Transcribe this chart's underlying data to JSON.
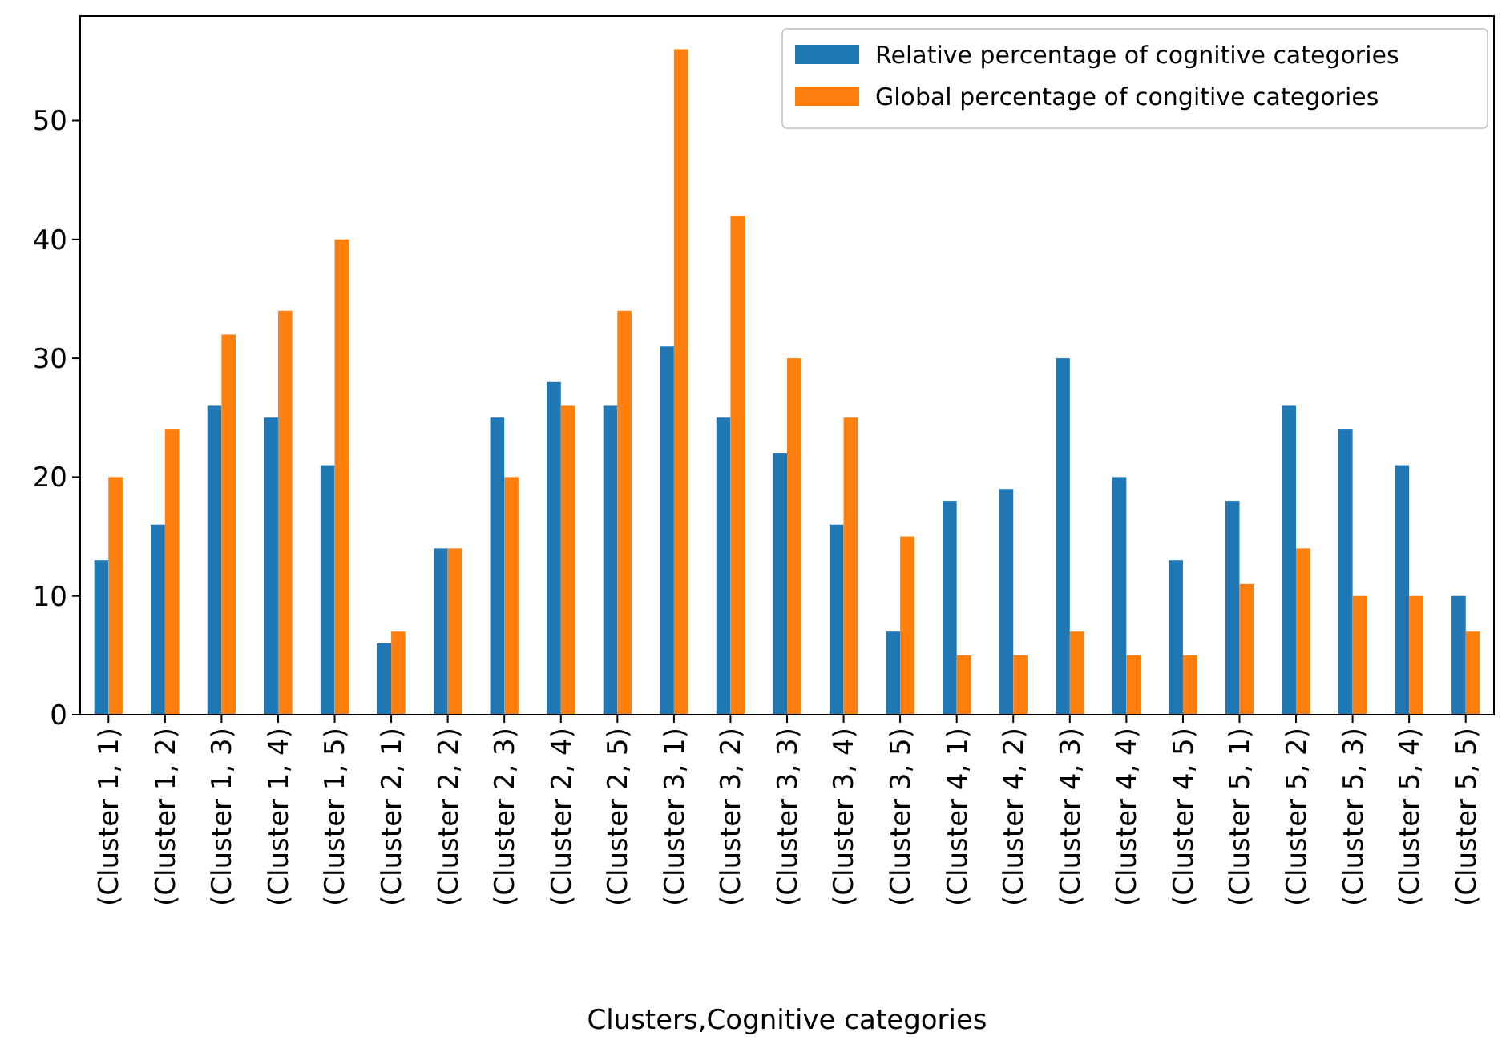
{
  "chart_data": {
    "type": "bar",
    "xlabel": "Clusters,Cognitive categories",
    "categories": [
      "(Cluster 1, 1)",
      "(Cluster 1, 2)",
      "(Cluster 1, 3)",
      "(Cluster 1, 4)",
      "(Cluster 1, 5)",
      "(Cluster 2, 1)",
      "(Cluster 2, 2)",
      "(Cluster 2, 3)",
      "(Cluster 2, 4)",
      "(Cluster 2, 5)",
      "(Cluster 3, 1)",
      "(Cluster 3, 2)",
      "(Cluster 3, 3)",
      "(Cluster 3, 4)",
      "(Cluster 3, 5)",
      "(Cluster 4, 1)",
      "(Cluster 4, 2)",
      "(Cluster 4, 3)",
      "(Cluster 4, 4)",
      "(Cluster 4, 5)",
      "(Cluster 5, 1)",
      "(Cluster 5, 2)",
      "(Cluster 5, 3)",
      "(Cluster 5, 4)",
      "(Cluster 5, 5)"
    ],
    "series": [
      {
        "name": "Relative percentage of cognitive categories",
        "color": "#1f77b4",
        "values": [
          13,
          16,
          26,
          25,
          21,
          6,
          14,
          25,
          28,
          26,
          31,
          25,
          22,
          16,
          7,
          18,
          19,
          30,
          20,
          13,
          18,
          26,
          24,
          21,
          10
        ]
      },
      {
        "name": "Global percentage of congitive categories",
        "color": "#ff7f0e",
        "values": [
          20,
          24,
          32,
          34,
          40,
          7,
          14,
          20,
          26,
          34,
          56,
          42,
          30,
          25,
          15,
          5,
          5,
          7,
          5,
          5,
          11,
          14,
          10,
          10,
          7
        ]
      }
    ],
    "ylim": [
      0,
      58.8
    ],
    "yticks": [
      0,
      10,
      20,
      30,
      40,
      50
    ],
    "grid": false,
    "legend": "top right"
  }
}
